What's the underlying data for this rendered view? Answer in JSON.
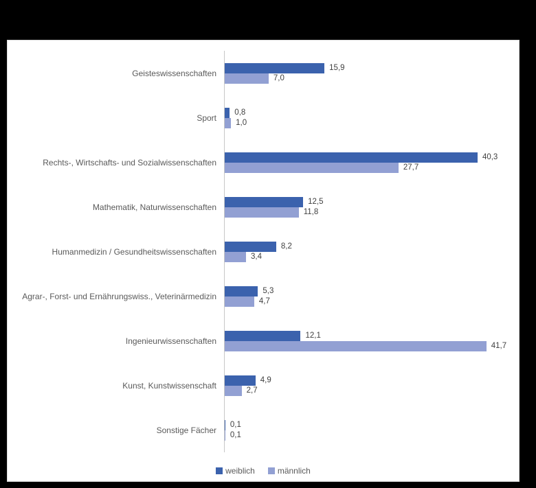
{
  "window": {
    "background_color": "#000000",
    "panel_background": "#ffffff",
    "panel_border_color": "#d9d9d9"
  },
  "chart_data": {
    "type": "bar",
    "orientation": "horizontal",
    "title": "",
    "xlabel": "",
    "ylabel": "",
    "xlim": [
      0,
      45
    ],
    "grid": false,
    "legend_position": "bottom",
    "axis_color": "#c6c6c6",
    "category_label_color": "#595959",
    "value_label_color": "#404040",
    "categories": [
      "Geisteswissenschaften",
      "Sport",
      "Rechts-, Wirtschafts- und Sozialwissenschaften",
      "Mathematik, Naturwissenschaften",
      "Humanmedizin / Gesundheitswissenschaften",
      "Agrar-, Forst- und Ernährungswiss., Veterinärmedizin",
      "Ingenieurwissenschaften",
      "Kunst, Kunstwissenschaft",
      "Sonstige Fächer"
    ],
    "series": [
      {
        "name": "weiblich",
        "color": "#3b62ad",
        "values": [
          15.9,
          0.8,
          40.3,
          12.5,
          8.2,
          5.3,
          12.1,
          4.9,
          0.1
        ],
        "value_labels": [
          "15,9",
          "0,8",
          "40,3",
          "12,5",
          "8,2",
          "5,3",
          "12,1",
          "4,9",
          "0,1"
        ]
      },
      {
        "name": "männlich",
        "color": "#92a0d3",
        "values": [
          7.0,
          1.0,
          27.7,
          11.8,
          3.4,
          4.7,
          41.7,
          2.7,
          0.1
        ],
        "value_labels": [
          "7,0",
          "1,0",
          "27,7",
          "11,8",
          "3,4",
          "4,7",
          "41,7",
          "2,7",
          "0,1"
        ]
      }
    ]
  },
  "legend": {
    "items": [
      {
        "label": "weiblich",
        "color": "#3b62ad"
      },
      {
        "label": "männlich",
        "color": "#92a0d3"
      }
    ]
  }
}
